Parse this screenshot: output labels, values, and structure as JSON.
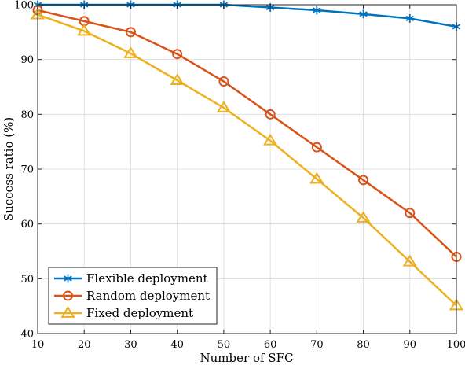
{
  "chart_data": {
    "type": "line",
    "title": "",
    "xlabel": "Number of SFC",
    "ylabel": "Success ratio (%)",
    "xlim": [
      10,
      100
    ],
    "ylim": [
      40,
      100
    ],
    "x": [
      10,
      20,
      30,
      40,
      50,
      60,
      70,
      80,
      90,
      100
    ],
    "x_ticks": [
      "10",
      "20",
      "30",
      "40",
      "50",
      "60",
      "70",
      "80",
      "90",
      "100"
    ],
    "y_ticks": [
      "40",
      "50",
      "60",
      "70",
      "80",
      "90",
      "100"
    ],
    "grid": true,
    "legend_position": "bottom-left",
    "series": [
      {
        "name": "Flexible deployment",
        "color": "#0072BD",
        "marker": "asterisk",
        "values": [
          100,
          100,
          100,
          100,
          100,
          99.5,
          99,
          98.3,
          97.5,
          96
        ]
      },
      {
        "name": "Random deployment",
        "color": "#D95319",
        "marker": "circle",
        "values": [
          99,
          97,
          95,
          91,
          86,
          80,
          74,
          68,
          62,
          54
        ]
      },
      {
        "name": "Fixed deployment",
        "color": "#EDB120",
        "marker": "triangle",
        "values": [
          98.2,
          95.2,
          91.1,
          86.2,
          81.2,
          75.2,
          68.2,
          61.1,
          53.1,
          45.1
        ]
      }
    ]
  }
}
